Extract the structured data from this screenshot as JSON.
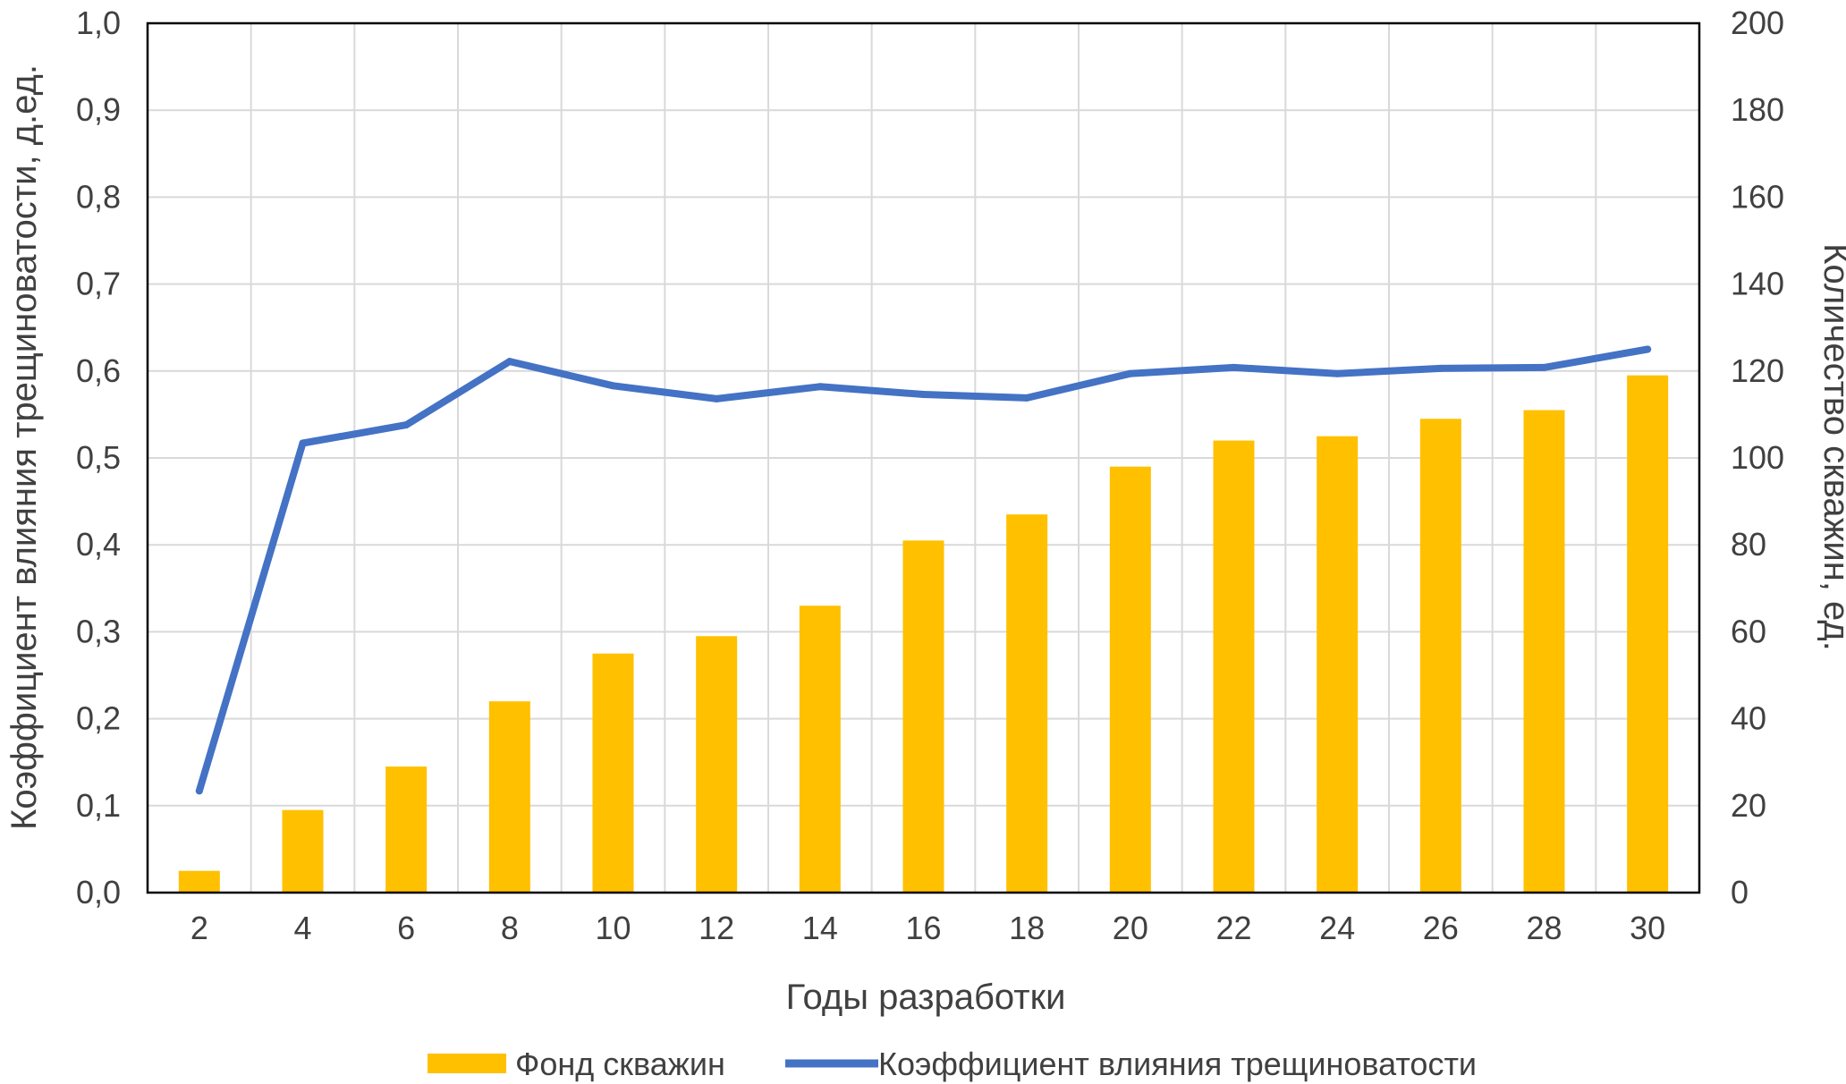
{
  "chart_data": {
    "type": "bar+line",
    "categories": [
      "2",
      "4",
      "6",
      "8",
      "10",
      "12",
      "14",
      "16",
      "18",
      "20",
      "22",
      "24",
      "26",
      "28",
      "30"
    ],
    "xlabel": "Годы разработки",
    "ylabel_left": "Коэффициент влияния трещиноватости, д.ед.",
    "ylabel_right": "Количество скважин, ед.",
    "y_left": {
      "lim": [
        0,
        1.0
      ],
      "ticks": [
        "0,0",
        "0,1",
        "0,2",
        "0,3",
        "0,4",
        "0,5",
        "0,6",
        "0,7",
        "0,8",
        "0,9",
        "1,0"
      ]
    },
    "y_right": {
      "lim": [
        0,
        200
      ],
      "ticks": [
        "0",
        "20",
        "40",
        "60",
        "80",
        "100",
        "120",
        "140",
        "160",
        "180",
        "200"
      ]
    },
    "grid": true,
    "legend_position": "bottom",
    "series": [
      {
        "name": "Фонд скважин",
        "kind": "bar",
        "axis": "right",
        "color": "#FFC000",
        "values": [
          5,
          19,
          29,
          44,
          55,
          59,
          66,
          81,
          87,
          98,
          104,
          105,
          109,
          111,
          119
        ]
      },
      {
        "name": "Коэффициент влияния трещиноватости",
        "kind": "line",
        "axis": "left",
        "color": "#4472C4",
        "values": [
          0.117,
          0.517,
          0.538,
          0.611,
          0.583,
          0.568,
          0.582,
          0.573,
          0.569,
          0.597,
          0.604,
          0.597,
          0.603,
          0.604,
          0.625
        ]
      }
    ]
  }
}
